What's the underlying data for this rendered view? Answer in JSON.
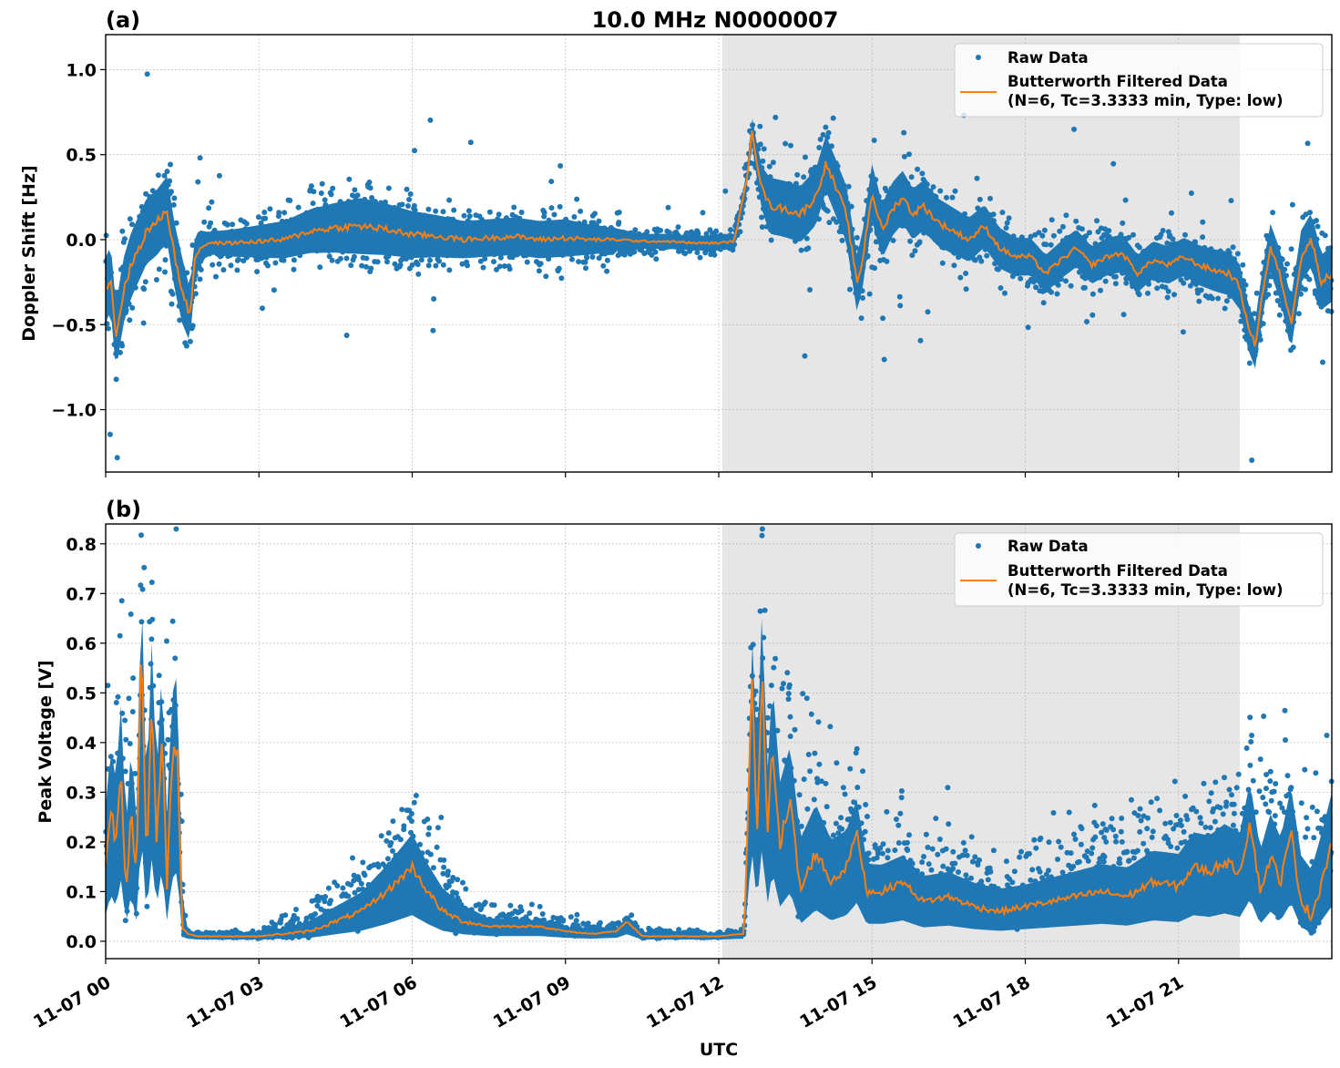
{
  "chart_data": {
    "type": "scatter",
    "title": "10.0 MHz N0000007",
    "xlabel": "UTC",
    "x_unit": "hours since 11-07 00",
    "xlim": [
      0,
      24
    ],
    "x_ticks": [
      0,
      3,
      6,
      9,
      12,
      15,
      18,
      21
    ],
    "x_tick_labels": [
      "11-07 00",
      "11-07 03",
      "11-07 06",
      "11-07 09",
      "11-07 12",
      "11-07 15",
      "11-07 18",
      "11-07 21"
    ],
    "shaded_interval": [
      12.07,
      22.2
    ],
    "colors": {
      "raw": "#1f77b4",
      "filtered": "#ff7f0e",
      "shade": "#e6e6e6",
      "grid": "#b0b0b0"
    },
    "legend": {
      "placement": "upper right",
      "raw_label": "Raw Data",
      "filtered_label_line1": "Butterworth Filtered Data",
      "filtered_label_line2": "(N=6, Tc=3.3333 min, Type: low)"
    },
    "panels": [
      {
        "panel_label": "(a)",
        "ylabel": "Doppler Shift [Hz]",
        "ylim": [
          -1.367,
          1.206
        ],
        "y_ticks": [
          1.0,
          0.5,
          0.0,
          -0.5,
          -1.0
        ],
        "y_tick_labels": [
          "1.0",
          "0.5",
          "0.0",
          "−0.5",
          "−1.0"
        ],
        "series": [
          {
            "name": "Butterworth Filtered Data",
            "kind": "line",
            "x": [
              0,
              0.1,
              0.2,
              0.35,
              0.5,
              0.65,
              0.8,
              1.0,
              1.2,
              1.35,
              1.5,
              1.65,
              1.75,
              1.85,
              2.0,
              2.5,
              3.0,
              3.5,
              4.0,
              4.5,
              5.0,
              5.5,
              6.0,
              6.5,
              7.0,
              7.5,
              8.0,
              8.5,
              9.0,
              9.5,
              10.0,
              10.5,
              11.0,
              11.5,
              12.0,
              12.3,
              12.55,
              12.65,
              12.75,
              12.85,
              13.0,
              13.3,
              13.6,
              13.9,
              14.1,
              14.3,
              14.5,
              14.7,
              14.8,
              15.0,
              15.2,
              15.4,
              15.6,
              15.8,
              16.0,
              16.3,
              16.6,
              16.9,
              17.2,
              17.5,
              17.8,
              18.1,
              18.4,
              18.7,
              19.0,
              19.3,
              19.6,
              19.9,
              20.2,
              20.5,
              20.8,
              21.1,
              21.4,
              21.7,
              22.0,
              22.2,
              22.35,
              22.5,
              22.65,
              22.8,
              23.0,
              23.2,
              23.4,
              23.6,
              23.8,
              24.0
            ],
            "y": [
              -0.3,
              -0.22,
              -0.58,
              -0.3,
              -0.15,
              -0.05,
              0.05,
              0.1,
              0.18,
              -0.1,
              -0.3,
              -0.45,
              -0.1,
              -0.05,
              -0.02,
              -0.02,
              -0.01,
              0.0,
              0.05,
              0.07,
              0.08,
              0.06,
              0.03,
              0.02,
              0.0,
              0.01,
              0.02,
              0.0,
              0.01,
              0.0,
              0.0,
              -0.01,
              -0.01,
              -0.02,
              -0.02,
              -0.01,
              0.35,
              0.65,
              0.45,
              0.3,
              0.2,
              0.18,
              0.15,
              0.25,
              0.45,
              0.3,
              0.15,
              -0.25,
              -0.15,
              0.28,
              0.05,
              0.18,
              0.25,
              0.15,
              0.2,
              0.1,
              0.05,
              0.0,
              0.08,
              -0.05,
              -0.1,
              -0.1,
              -0.2,
              -0.12,
              -0.05,
              -0.15,
              -0.1,
              -0.08,
              -0.2,
              -0.12,
              -0.15,
              -0.1,
              -0.15,
              -0.18,
              -0.2,
              -0.28,
              -0.5,
              -0.62,
              -0.3,
              -0.05,
              -0.22,
              -0.5,
              -0.1,
              0.0,
              -0.25,
              -0.2
            ]
          },
          {
            "name": "Raw Data",
            "kind": "scatter",
            "spread_x": [
              0,
              1.5,
              2.0,
              3.5,
              5.0,
              7.0,
              9.0,
              10.5,
              12.5,
              13.0,
              15.0,
              18.0,
              21.0,
              24.0
            ],
            "spread_hz": [
              0.35,
              0.35,
              0.12,
              0.2,
              0.3,
              0.2,
              0.2,
              0.08,
              0.08,
              0.3,
              0.3,
              0.2,
              0.2,
              0.3
            ]
          }
        ]
      },
      {
        "panel_label": "(b)",
        "ylabel": "Peak Voltage [V]",
        "ylim": [
          -0.035,
          0.84
        ],
        "y_ticks": [
          0.0,
          0.1,
          0.2,
          0.3,
          0.4,
          0.5,
          0.6,
          0.7,
          0.8
        ],
        "y_tick_labels": [
          "0.0",
          "0.1",
          "0.2",
          "0.3",
          "0.4",
          "0.5",
          "0.6",
          "0.7",
          "0.8"
        ],
        "series": [
          {
            "name": "Butterworth Filtered Data",
            "kind": "line",
            "x": [
              0,
              0.1,
              0.2,
              0.3,
              0.4,
              0.5,
              0.6,
              0.7,
              0.8,
              0.9,
              1.0,
              1.1,
              1.2,
              1.3,
              1.4,
              1.5,
              1.6,
              1.8,
              2.0,
              3.0,
              4.0,
              4.5,
              5.0,
              5.5,
              5.8,
              6.0,
              6.3,
              6.6,
              7.0,
              7.5,
              8.0,
              8.5,
              9.0,
              9.5,
              10.0,
              10.2,
              10.5,
              11.0,
              11.5,
              12.0,
              12.5,
              12.65,
              12.75,
              12.85,
              12.95,
              13.05,
              13.2,
              13.4,
              13.6,
              13.9,
              14.2,
              14.5,
              14.7,
              14.9,
              15.2,
              15.6,
              16.0,
              16.5,
              17.0,
              17.5,
              18.0,
              18.5,
              19.0,
              19.5,
              20.0,
              20.5,
              21.0,
              21.3,
              21.6,
              21.9,
              22.2,
              22.4,
              22.6,
              22.8,
              23.0,
              23.2,
              23.4,
              23.6,
              23.8,
              24.0
            ],
            "y": [
              0.15,
              0.27,
              0.2,
              0.35,
              0.1,
              0.27,
              0.12,
              0.61,
              0.15,
              0.47,
              0.2,
              0.42,
              0.12,
              0.36,
              0.4,
              0.03,
              0.015,
              0.01,
              0.01,
              0.01,
              0.02,
              0.04,
              0.06,
              0.1,
              0.13,
              0.15,
              0.1,
              0.06,
              0.04,
              0.03,
              0.03,
              0.03,
              0.02,
              0.015,
              0.02,
              0.04,
              0.01,
              0.01,
              0.01,
              0.01,
              0.015,
              0.52,
              0.22,
              0.55,
              0.2,
              0.4,
              0.2,
              0.28,
              0.1,
              0.18,
              0.12,
              0.15,
              0.22,
              0.1,
              0.1,
              0.12,
              0.08,
              0.09,
              0.07,
              0.06,
              0.07,
              0.08,
              0.09,
              0.1,
              0.09,
              0.12,
              0.11,
              0.15,
              0.14,
              0.16,
              0.14,
              0.24,
              0.1,
              0.17,
              0.12,
              0.22,
              0.08,
              0.05,
              0.12,
              0.2
            ]
          },
          {
            "name": "Raw Data",
            "kind": "scatter",
            "spread_x": [
              0,
              1.4,
              1.6,
              3.0,
              5.0,
              6.0,
              7.5,
              10.0,
              12.5,
              12.7,
              13.5,
              15.0,
              18.0,
              21.0,
              24.0
            ],
            "spread_v": [
              0.22,
              0.25,
              0.005,
              0.008,
              0.07,
              0.12,
              0.03,
              0.01,
              0.005,
              0.25,
              0.2,
              0.1,
              0.08,
              0.12,
              0.18
            ]
          }
        ]
      }
    ]
  }
}
